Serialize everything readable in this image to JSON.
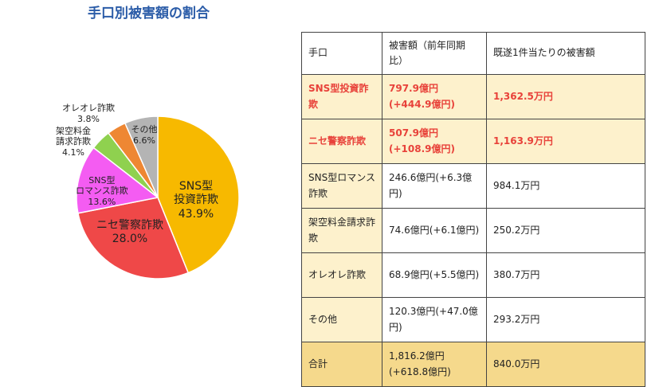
{
  "title": "手口別被害額の割合",
  "chart_data": {
    "type": "pie",
    "categories": [
      "SNS型\n投資詐欺",
      "ニセ警察詐欺",
      "SNS型\nロマンス詐欺",
      "架空料金\n請求詐欺",
      "オレオレ詐欺",
      "その他"
    ],
    "values": [
      43.9,
      28.0,
      13.6,
      4.1,
      3.8,
      6.6
    ],
    "value_labels": [
      "43.9%",
      "28.0%",
      "13.6%",
      "4.1%",
      "3.8%",
      "6.6%"
    ],
    "colors": [
      "#f7b900",
      "#ef4848",
      "#f45cf2",
      "#8fd14f",
      "#ee8733",
      "#b4b4b4"
    ]
  },
  "table": {
    "header": [
      "手口",
      "被害額（前年同期比）",
      "既遂1件当たりの被害額"
    ],
    "rows": [
      [
        "SNS型投資詐欺",
        "797.9億円(+444.9億円)",
        "1,362.5万円"
      ],
      [
        "ニセ警察詐欺",
        "507.9億円(+108.9億円)",
        "1,163.9万円"
      ],
      [
        "SNS型ロマンス詐欺",
        "246.6億円(+6.3億円)",
        "984.1万円"
      ],
      [
        "架空料金請求詐欺",
        "74.6億円(+6.1億円)",
        "250.2万円"
      ],
      [
        "オレオレ詐欺",
        "68.9億円(+5.5億円)",
        "380.7万円"
      ],
      [
        "その他",
        "120.3億円(+47.0億円)",
        "293.2万円"
      ],
      [
        "合計",
        "1,816.2億円(+618.8億円)",
        "840.0万円"
      ]
    ]
  }
}
